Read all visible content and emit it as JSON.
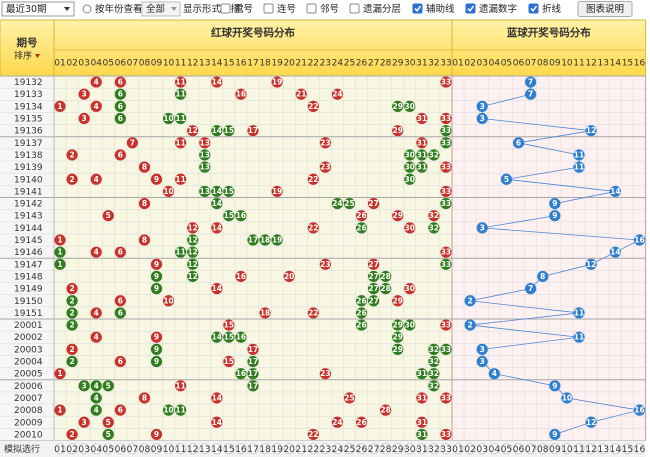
{
  "toolbar": {
    "period_select": "最近30期",
    "year_label": "按年份查看",
    "year_select": "全部",
    "display_label": "显示形式选择：",
    "options": [
      {
        "label": "重号",
        "checked": false
      },
      {
        "label": "连号",
        "checked": false
      },
      {
        "label": "邻号",
        "checked": false
      },
      {
        "label": "遗漏分层",
        "checked": false
      },
      {
        "label": "辅助线",
        "checked": true
      },
      {
        "label": "遗漏数字",
        "checked": true
      },
      {
        "label": "折线",
        "checked": true
      }
    ],
    "button": "图表说明"
  },
  "header": {
    "issue": "期号",
    "sort": "排序",
    "red_title": "红球开奖号码分布",
    "blue_title": "蓝球开奖号码分布",
    "red_numbers": [
      "01",
      "02",
      "03",
      "04",
      "05",
      "06",
      "07",
      "08",
      "09",
      "10",
      "11",
      "12",
      "13",
      "14",
      "15",
      "16",
      "17",
      "18",
      "19",
      "20",
      "21",
      "22",
      "23",
      "24",
      "25",
      "26",
      "27",
      "28",
      "29",
      "30",
      "31",
      "32",
      "33"
    ],
    "blue_numbers": [
      "01",
      "02",
      "03",
      "04",
      "05",
      "06",
      "07",
      "08",
      "09",
      "10",
      "11",
      "12",
      "13",
      "14",
      "15",
      "16"
    ]
  },
  "rows": [
    {
      "issue": "19132",
      "red": [
        4,
        6,
        11,
        14,
        19,
        33
      ],
      "blue": 7
    },
    {
      "issue": "19133",
      "red": [
        3,
        6,
        11,
        16,
        21,
        24
      ],
      "blue": 7
    },
    {
      "issue": "19134",
      "red": [
        1,
        4,
        6,
        22,
        29,
        30
      ],
      "blue": 3
    },
    {
      "issue": "19135",
      "red": [
        3,
        6,
        10,
        11,
        31,
        33
      ],
      "blue": 3
    },
    {
      "issue": "19136",
      "red": [
        12,
        14,
        15,
        17,
        29,
        33
      ],
      "blue": 12
    },
    {
      "issue": "19137",
      "red": [
        7,
        11,
        13,
        23,
        31,
        33
      ],
      "blue": 6
    },
    {
      "issue": "19138",
      "red": [
        2,
        6,
        13,
        30,
        31,
        32
      ],
      "blue": 11
    },
    {
      "issue": "19139",
      "red": [
        8,
        13,
        23,
        30,
        31,
        33
      ],
      "blue": 11
    },
    {
      "issue": "19140",
      "red": [
        2,
        4,
        9,
        11,
        22,
        30
      ],
      "blue": 5
    },
    {
      "issue": "19141",
      "red": [
        10,
        13,
        14,
        15,
        19,
        33
      ],
      "blue": 14
    },
    {
      "issue": "19142",
      "red": [
        8,
        14,
        24,
        25,
        27,
        33
      ],
      "blue": 9
    },
    {
      "issue": "19143",
      "red": [
        5,
        15,
        16,
        26,
        29,
        32
      ],
      "blue": 9
    },
    {
      "issue": "19144",
      "red": [
        12,
        14,
        22,
        26,
        30,
        32
      ],
      "blue": 3
    },
    {
      "issue": "19145",
      "red": [
        1,
        8,
        12,
        17,
        18,
        19
      ],
      "blue": 16
    },
    {
      "issue": "19146",
      "red": [
        1,
        4,
        6,
        11,
        12,
        33
      ],
      "blue": 14
    },
    {
      "issue": "19147",
      "red": [
        1,
        9,
        12,
        23,
        27,
        33
      ],
      "blue": 12
    },
    {
      "issue": "19148",
      "red": [
        9,
        12,
        16,
        20,
        27,
        28
      ],
      "blue": 8
    },
    {
      "issue": "19149",
      "red": [
        2,
        9,
        14,
        27,
        28,
        30
      ],
      "blue": 7
    },
    {
      "issue": "19150",
      "red": [
        2,
        6,
        10,
        26,
        27,
        29
      ],
      "blue": 2
    },
    {
      "issue": "19151",
      "red": [
        2,
        4,
        6,
        18,
        22,
        26
      ],
      "blue": 11
    },
    {
      "issue": "20001",
      "red": [
        2,
        15,
        26,
        29,
        30,
        33
      ],
      "blue": 2
    },
    {
      "issue": "20002",
      "red": [
        4,
        9,
        14,
        15,
        16,
        29
      ],
      "blue": 11
    },
    {
      "issue": "20003",
      "red": [
        2,
        9,
        17,
        29,
        32,
        33
      ],
      "blue": 3
    },
    {
      "issue": "20004",
      "red": [
        2,
        6,
        9,
        15,
        17,
        32
      ],
      "blue": 3
    },
    {
      "issue": "20005",
      "red": [
        1,
        16,
        17,
        23,
        31,
        32
      ],
      "blue": 4
    },
    {
      "issue": "20006",
      "red": [
        3,
        4,
        5,
        11,
        17,
        32
      ],
      "blue": 9
    },
    {
      "issue": "20007",
      "red": [
        4,
        8,
        14,
        25,
        31,
        33
      ],
      "blue": 10
    },
    {
      "issue": "20008",
      "red": [
        1,
        4,
        6,
        10,
        11,
        28
      ],
      "blue": 16
    },
    {
      "issue": "20009",
      "red": [
        3,
        5,
        14,
        24,
        26,
        31
      ],
      "blue": 12
    },
    {
      "issue": "20010",
      "red": [
        2,
        5,
        9,
        22,
        31,
        33
      ],
      "blue": 9
    }
  ],
  "footer": {
    "label": "模拟选行"
  }
}
